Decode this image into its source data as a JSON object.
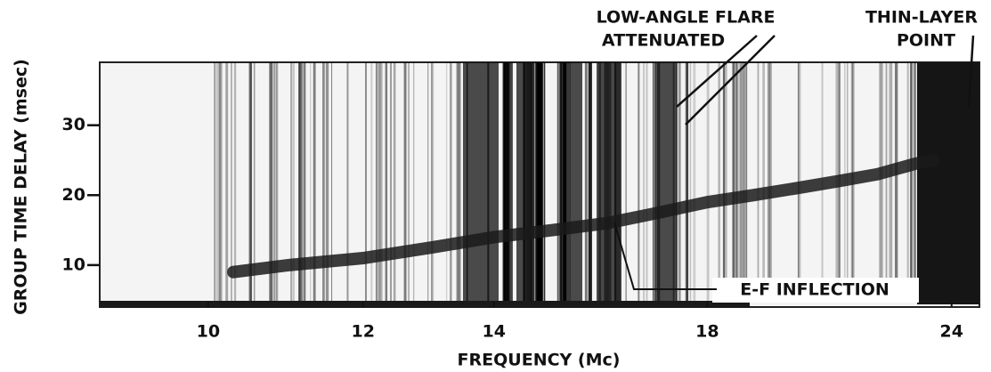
{
  "chart_data": {
    "type": "ionogram",
    "xlabel": "FREQUENCY (Mc)",
    "ylabel": "GROUP TIME DELAY (msec)",
    "xscale": "log",
    "xlim": [
      8.8,
      24.8
    ],
    "xticks": [
      10,
      12,
      14,
      18,
      24
    ],
    "ylim": [
      4,
      39
    ],
    "yticks": [
      10,
      20,
      30
    ],
    "color": "#1a1a1a",
    "trace": {
      "x": [
        10.3,
        11,
        12,
        13,
        14,
        15,
        16,
        17,
        18,
        19,
        20,
        21,
        22,
        23,
        23.5
      ],
      "values": [
        9,
        10,
        11,
        12.5,
        14,
        15,
        16,
        17.5,
        19,
        20,
        21,
        22,
        23,
        24.5,
        25
      ]
    },
    "annotations": [
      "LOW-ANGLE FLARE",
      "ATTENUATED",
      "THIN-LAYER",
      "POINT",
      "E-F INFLECTION"
    ]
  }
}
